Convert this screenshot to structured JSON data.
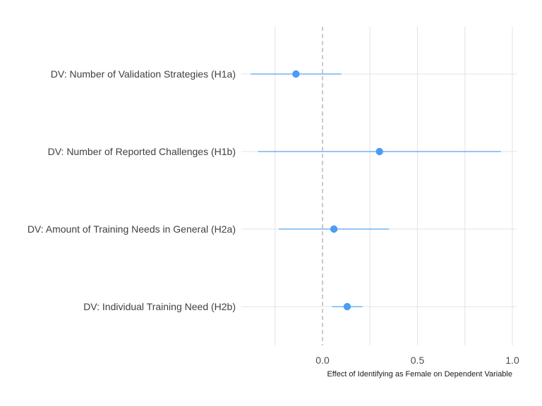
{
  "chart_data": {
    "type": "scatter",
    "subtype": "forest-plot",
    "title": "",
    "xlabel": "Effect of Identifying as Female on Dependent Variable",
    "ylabel": "",
    "xlim": [
      -0.4,
      1.0
    ],
    "xticks": [
      0.0,
      0.5,
      1.0
    ],
    "xtick_labels": [
      "0.0",
      "0.5",
      "1.0"
    ],
    "grid": true,
    "reference_line": {
      "x": 0,
      "style": "dashed"
    },
    "categories": [
      "DV: Number of Validation Strategies (H1a)",
      "DV: Number of Reported Challenges (H1b)",
      "DV: Amount of Training Needs in General (H2a)",
      "DV: Individual Training Need (H2b)"
    ],
    "estimates": [
      -0.14,
      0.3,
      0.06,
      0.13
    ],
    "ci_lower": [
      -0.38,
      -0.34,
      -0.23,
      0.05
    ],
    "ci_upper": [
      0.1,
      0.94,
      0.35,
      0.21
    ],
    "colors": {
      "point": "#4a9df0",
      "interval": "#56a5f0",
      "grid": "#e3e3e3",
      "reference": "#b8b8b8"
    }
  }
}
